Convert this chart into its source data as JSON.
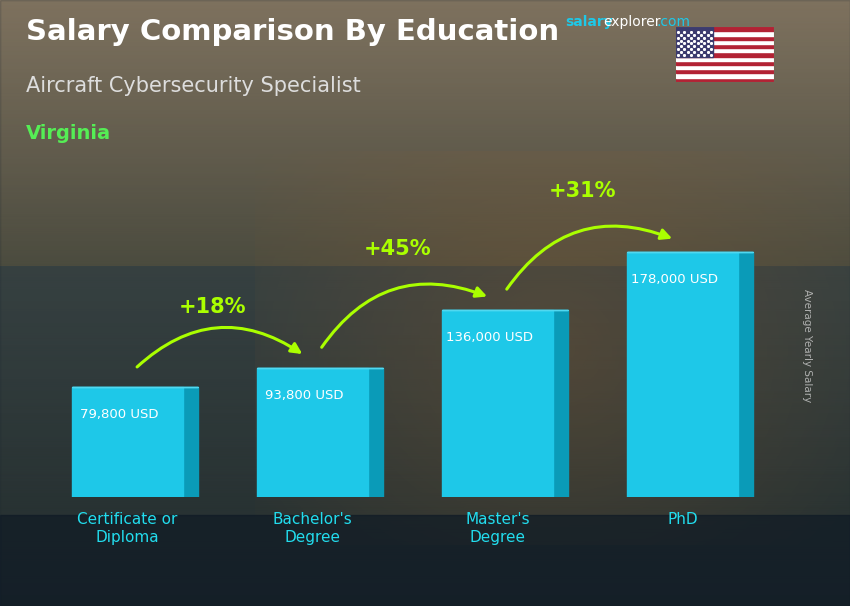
{
  "title": "Salary Comparison By Education",
  "subtitle": "Aircraft Cybersecurity Specialist",
  "location": "Virginia",
  "ylabel": "Average Yearly Salary",
  "categories": [
    "Certificate or\nDiploma",
    "Bachelor's\nDegree",
    "Master's\nDegree",
    "PhD"
  ],
  "values": [
    79800,
    93800,
    136000,
    178000
  ],
  "value_labels": [
    "79,800 USD",
    "93,800 USD",
    "136,000 USD",
    "178,000 USD"
  ],
  "pct_labels": [
    "+18%",
    "+45%",
    "+31%"
  ],
  "bar_color_face": "#1EC8E8",
  "bar_color_right": "#0A9BB8",
  "bar_color_top": "#50D8F0",
  "bg_top_color": "#8B7355",
  "bg_mid_color": "#5a6a5a",
  "bg_bot_color": "#1a2a2a",
  "title_color": "#FFFFFF",
  "subtitle_color": "#DDDDDD",
  "location_color": "#55EE55",
  "value_label_color": "#FFFFFF",
  "pct_label_color": "#AAFF00",
  "arrow_color": "#AAFF00",
  "xlabel_color": "#22DDEE",
  "ylabel_color": "#CCCCCC",
  "brand_salary_color": "#1EC8E8",
  "brand_explorer_color": "#FFFFFF",
  "brand_com_color": "#1EC8E8",
  "ylim": [
    0,
    220000
  ],
  "bar_positions": [
    0.55,
    1.75,
    2.95,
    4.15
  ],
  "bar_width": 0.72
}
